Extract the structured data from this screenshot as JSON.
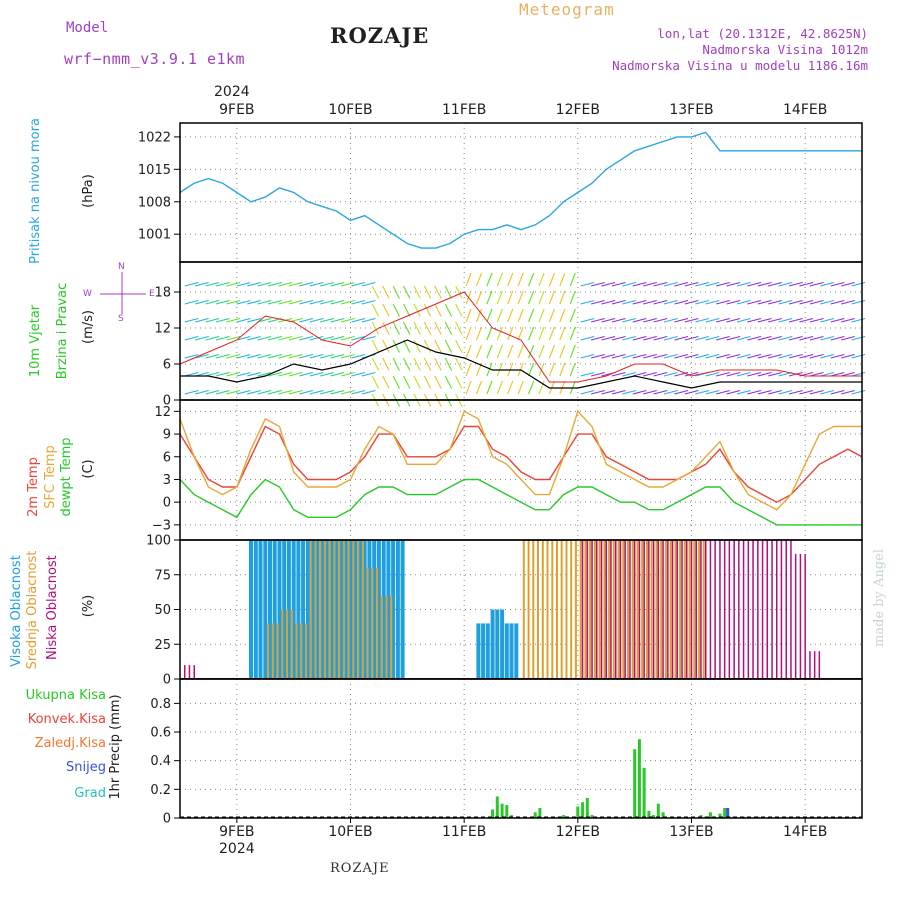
{
  "header": {
    "model_label": "Model",
    "model_name": "wrf−nmm_v3.9.1  e1km",
    "station": "ROZAJE",
    "meteogram_label": "Meteogram",
    "lonlat": "lon,lat (20.1312E, 42.8625N)",
    "elevation": "Nadmorska Visina 1012m",
    "model_elevation": "Nadmorska Visina u modelu 1186.16m",
    "footer_station": "ROZAJE",
    "credit": "made by Angel"
  },
  "colors": {
    "pressure": "#2aa6e0",
    "temp2m": "#e8463a",
    "sfc_temp": "#e8a838",
    "dewpt": "#28c828",
    "high_cloud": "#1ea0e0",
    "mid_cloud": "#e0a030",
    "low_cloud": "#b0107a",
    "total_precip": "#28c828",
    "conv_precip": "#e8463a",
    "frozen_precip": "#f07830",
    "snow": "#3a50d8",
    "graupel": "#20c0c0",
    "model_text": "#a040c0",
    "meteogram_text": "#e8b060"
  },
  "time_axis": {
    "top_year": "2024",
    "bottom_year": "2024",
    "days": [
      "9FEB",
      "10FEB",
      "11FEB",
      "12FEB",
      "13FEB",
      "14FEB"
    ]
  },
  "chart_data": [
    {
      "type": "line",
      "panel": "pressure",
      "ylabel_color": "Pritisak na nivou mora",
      "ylabel_unit": "(hPa)",
      "yticks": [
        "1022",
        "1015",
        "1008",
        "1001"
      ],
      "ylim": [
        995,
        1025
      ],
      "x_hours": [
        0,
        3,
        6,
        9,
        12,
        15,
        18,
        21,
        24,
        27,
        30,
        33,
        36,
        39,
        42,
        45,
        48,
        51,
        54,
        57,
        60,
        63,
        66,
        69,
        72,
        75,
        78,
        81,
        84,
        87,
        90,
        93,
        96,
        99,
        102,
        105,
        108,
        111,
        114,
        117,
        120,
        123,
        126,
        129,
        132,
        135,
        138,
        141,
        144
      ],
      "values": [
        1010,
        1012,
        1013,
        1012,
        1010,
        1008,
        1009,
        1011,
        1010,
        1008,
        1007,
        1006,
        1004,
        1005,
        1003,
        1001,
        999,
        998,
        998,
        999,
        1001,
        1002,
        1002,
        1003,
        1002,
        1003,
        1005,
        1008,
        1010,
        1012,
        1015,
        1017,
        1019,
        1020,
        1021,
        1022,
        1022,
        1023,
        1019,
        1019,
        1019,
        1019,
        1019,
        1019,
        1019,
        1019,
        1019,
        1019,
        1019
      ]
    },
    {
      "type": "line",
      "panel": "wind",
      "ylabel_a": "10m Vjetar",
      "ylabel_b": "Brzina i Pravac",
      "ylabel_unit": "(m/s)",
      "compass_w": "W",
      "compass_e": "E",
      "compass_n": "N",
      "compass_s": "S",
      "yticks": [
        "18",
        "12",
        "6",
        "0"
      ],
      "ylim": [
        0,
        23
      ],
      "x_hours": [
        0,
        6,
        12,
        18,
        24,
        30,
        36,
        42,
        48,
        54,
        60,
        66,
        72,
        78,
        84,
        90,
        96,
        102,
        108,
        114,
        120,
        126,
        132,
        138,
        144
      ],
      "speed": [
        4,
        4,
        3,
        4,
        6,
        5,
        6,
        8,
        10,
        8,
        7,
        5,
        5,
        2,
        2,
        3,
        4,
        3,
        2,
        3,
        3,
        3,
        3,
        3,
        3
      ],
      "gust": [
        6,
        8,
        10,
        14,
        13,
        10,
        9,
        12,
        14,
        16,
        18,
        12,
        10,
        3,
        3,
        4,
        6,
        6,
        4,
        5,
        5,
        5,
        4,
        4,
        4
      ]
    },
    {
      "type": "line",
      "panel": "temperature",
      "ylabel_a": "2m Temp",
      "ylabel_b": "SFC Temp",
      "ylabel_c": "dewpt Temp",
      "ylabel_unit": "(C)",
      "yticks": [
        "12",
        "9",
        "6",
        "3",
        "0",
        "−3"
      ],
      "ylim": [
        -5,
        13.5
      ],
      "x_hours": [
        0,
        3,
        6,
        9,
        12,
        15,
        18,
        21,
        24,
        27,
        30,
        33,
        36,
        39,
        42,
        45,
        48,
        51,
        54,
        57,
        60,
        63,
        66,
        69,
        72,
        75,
        78,
        81,
        84,
        87,
        90,
        93,
        96,
        99,
        102,
        105,
        108,
        111,
        114,
        117,
        120,
        123,
        126,
        129,
        132,
        135,
        138,
        141,
        144
      ],
      "series": [
        {
          "name": "2m Temp",
          "values": [
            9,
            6,
            3,
            2,
            2,
            6,
            10,
            9,
            5,
            3,
            3,
            3,
            4,
            6,
            9,
            9,
            6,
            6,
            6,
            7,
            10,
            10,
            7,
            6,
            4,
            3,
            3,
            6,
            9,
            9,
            6,
            5,
            4,
            3,
            3,
            3,
            4,
            5,
            7,
            4,
            2,
            1,
            0,
            1,
            3,
            5,
            6,
            7,
            6
          ]
        },
        {
          "name": "SFC Temp",
          "values": [
            11,
            6,
            2,
            1,
            2,
            7,
            11,
            10,
            4,
            2,
            2,
            2,
            3,
            7,
            10,
            9,
            5,
            5,
            5,
            7,
            12,
            11,
            6,
            5,
            3,
            1,
            1,
            6,
            12,
            10,
            5,
            4,
            3,
            2,
            2,
            3,
            4,
            6,
            8,
            4,
            1,
            0,
            -1,
            1,
            5,
            9,
            10,
            10,
            10
          ]
        },
        {
          "name": "dewpt Temp",
          "values": [
            3,
            1,
            0,
            -1,
            -2,
            1,
            3,
            2,
            -1,
            -2,
            -2,
            -2,
            -1,
            1,
            2,
            2,
            1,
            1,
            1,
            2,
            3,
            3,
            2,
            1,
            0,
            -1,
            -1,
            1,
            2,
            2,
            1,
            0,
            0,
            -1,
            -1,
            0,
            1,
            2,
            2,
            0,
            -1,
            -2,
            -3,
            -3,
            -3,
            -3,
            -3,
            -3,
            -3
          ]
        }
      ]
    },
    {
      "type": "bar",
      "panel": "clouds",
      "ylabel_a": "Visoka Oblacnost",
      "ylabel_b": "Srednja Oblacnost",
      "ylabel_c": "Niska Oblacnost",
      "ylabel_unit": "(%)",
      "yticks": [
        "100",
        "75",
        "50",
        "25",
        "0"
      ],
      "ylim": [
        0,
        100
      ],
      "x_hours": [
        0,
        3,
        6,
        9,
        12,
        15,
        18,
        21,
        24,
        27,
        30,
        33,
        36,
        39,
        42,
        45,
        48,
        51,
        54,
        57,
        60,
        63,
        66,
        69,
        72,
        75,
        78,
        81,
        84,
        87,
        90,
        93,
        96,
        99,
        102,
        105,
        108,
        111,
        114,
        117,
        120,
        123,
        126,
        129,
        132,
        135,
        138,
        141,
        144
      ],
      "series": [
        {
          "name": "Visoka Oblacnost",
          "values": [
            0,
            0,
            0,
            0,
            0,
            100,
            100,
            100,
            100,
            100,
            100,
            100,
            100,
            100,
            100,
            100,
            0,
            0,
            0,
            0,
            0,
            40,
            50,
            40,
            0,
            0,
            0,
            0,
            0,
            0,
            0,
            0,
            0,
            0,
            0,
            0,
            0,
            0,
            0,
            0,
            0,
            0,
            0,
            0,
            0,
            0,
            0,
            0,
            0
          ]
        },
        {
          "name": "Srednja Oblacnost",
          "values": [
            0,
            0,
            0,
            0,
            0,
            0,
            40,
            50,
            40,
            100,
            100,
            100,
            100,
            80,
            60,
            0,
            0,
            0,
            0,
            0,
            0,
            0,
            0,
            0,
            100,
            100,
            100,
            100,
            100,
            100,
            100,
            100,
            100,
            100,
            100,
            100,
            100,
            0,
            0,
            0,
            0,
            0,
            0,
            0,
            0,
            0,
            0,
            0,
            0
          ]
        },
        {
          "name": "Niska Oblacnost",
          "values": [
            10,
            0,
            0,
            0,
            0,
            0,
            0,
            0,
            0,
            0,
            0,
            0,
            0,
            0,
            0,
            0,
            0,
            0,
            0,
            0,
            0,
            0,
            0,
            0,
            0,
            0,
            0,
            0,
            100,
            100,
            100,
            100,
            100,
            100,
            100,
            100,
            100,
            100,
            100,
            100,
            100,
            100,
            100,
            90,
            20,
            0,
            0,
            0,
            10
          ]
        }
      ]
    },
    {
      "type": "bar",
      "panel": "precip",
      "legend": [
        "Ukupna  Kisa",
        "Konvek.Kisa",
        "Zaledj.Kisa",
        "Snijeg",
        "Grad"
      ],
      "ylabel_unit": "1hr Precip (mm)",
      "yticks": [
        "0.8",
        "0.6",
        "0.4",
        "0.2",
        "0"
      ],
      "ylim": [
        0,
        0.97
      ],
      "x_hours": [
        66,
        67,
        68,
        69,
        70,
        75,
        76,
        80,
        81,
        84,
        85,
        86,
        87,
        96,
        97,
        98,
        99,
        100,
        101,
        102,
        110,
        111,
        112,
        114,
        115,
        116,
        117,
        119,
        120,
        122
      ],
      "series": [
        {
          "name": "Ukupna  Kisa",
          "values": [
            0.06,
            0.15,
            0.1,
            0.09,
            0.02,
            0.04,
            0.07,
            0.01,
            0.02,
            0.08,
            0.11,
            0.14,
            0.02,
            0.48,
            0.55,
            0.35,
            0.05,
            0.02,
            0.1,
            0.04,
            0.02,
            0.01,
            0.04,
            0.03,
            0.07,
            0.01,
            0.01,
            0.01,
            0.01,
            0.01
          ]
        },
        {
          "name": "Snijeg",
          "values": [
            0,
            0,
            0,
            0,
            0,
            0,
            0,
            0,
            0,
            0,
            0,
            0,
            0,
            0,
            0,
            0,
            0,
            0,
            0,
            0,
            0,
            0,
            0,
            0,
            0.07,
            0,
            0,
            0,
            0,
            0
          ]
        }
      ]
    }
  ]
}
